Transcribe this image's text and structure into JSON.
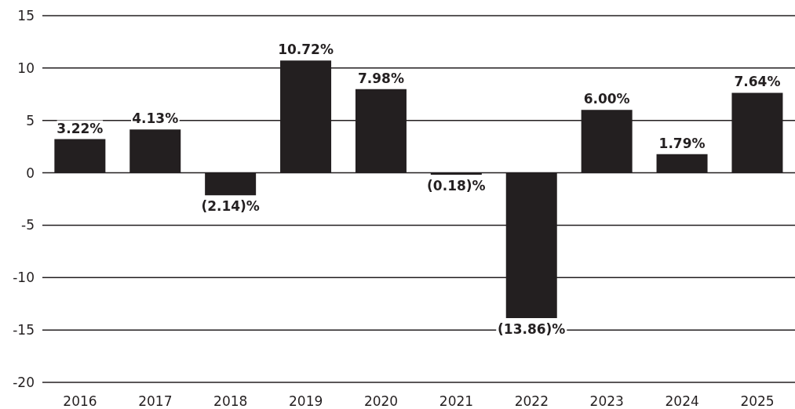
{
  "chart_data": {
    "type": "bar",
    "categories": [
      "2016",
      "2017",
      "2018",
      "2019",
      "2020",
      "2021",
      "2022",
      "2023",
      "2024",
      "2025"
    ],
    "values": [
      3.22,
      4.13,
      -2.14,
      10.72,
      7.98,
      -0.18,
      -13.86,
      6.0,
      1.79,
      7.64
    ],
    "value_labels": [
      "3.22%",
      "4.13%",
      "(2.14)%",
      "10.72%",
      "7.98%",
      "(0.18)%",
      "(13.86)%",
      "6.00%",
      "1.79%",
      "7.64%"
    ],
    "color": "#231f20",
    "ylim": [
      -20,
      15
    ],
    "yticks": [
      -20,
      -15,
      -10,
      -5,
      0,
      5,
      10,
      15
    ],
    "grid": "y",
    "legend": false
  }
}
